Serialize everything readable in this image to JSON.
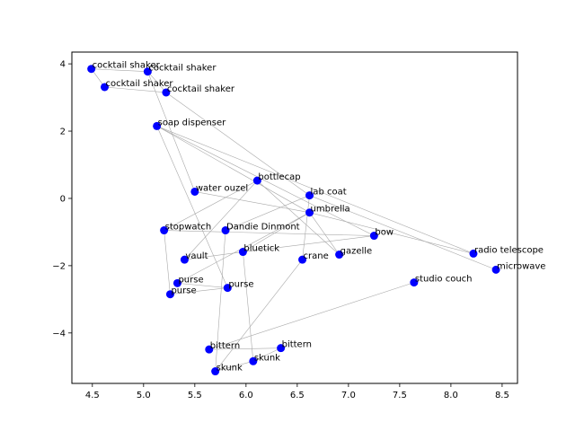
{
  "chart_data": {
    "type": "scatter",
    "title": "",
    "xlabel": "",
    "ylabel": "",
    "xlim": [
      4.3,
      8.65
    ],
    "ylim": [
      -5.5,
      4.35
    ],
    "x_ticks": [
      4.5,
      5.0,
      5.5,
      6.0,
      6.5,
      7.0,
      7.5,
      8.0,
      8.5
    ],
    "y_ticks": [
      -4,
      -2,
      0,
      2,
      4
    ],
    "x_tick_labels": [
      "4.5",
      "5.0",
      "5.5",
      "6.0",
      "6.5",
      "7.0",
      "7.5",
      "8.0",
      "8.5"
    ],
    "y_tick_labels": [
      "−4",
      "−2",
      "0",
      "2",
      "4"
    ],
    "grid": false,
    "marker_color": "#0000ff",
    "edge_color": "#a9a9a9",
    "points": [
      {
        "label": "cocktail shaker",
        "x": 4.49,
        "y": 3.85
      },
      {
        "label": "cocktail shaker",
        "x": 5.04,
        "y": 3.77
      },
      {
        "label": "cocktail shaker",
        "x": 4.62,
        "y": 3.31
      },
      {
        "label": "cocktail shaker",
        "x": 5.22,
        "y": 3.15
      },
      {
        "label": "soap dispenser",
        "x": 5.13,
        "y": 2.15
      },
      {
        "label": "bottlecap",
        "x": 6.11,
        "y": 0.53
      },
      {
        "label": "water ouzel",
        "x": 5.5,
        "y": 0.2
      },
      {
        "label": "lab coat",
        "x": 6.62,
        "y": 0.09
      },
      {
        "label": "umbrella",
        "x": 6.62,
        "y": -0.42
      },
      {
        "label": "stopwatch",
        "x": 5.2,
        "y": -0.95
      },
      {
        "label": "Dandie Dinmont",
        "x": 5.8,
        "y": -0.95
      },
      {
        "label": "bow",
        "x": 7.25,
        "y": -1.11
      },
      {
        "label": "bluetick",
        "x": 5.97,
        "y": -1.59
      },
      {
        "label": "gazelle",
        "x": 6.91,
        "y": -1.67
      },
      {
        "label": "radio telescope",
        "x": 8.22,
        "y": -1.64
      },
      {
        "label": "crane",
        "x": 6.55,
        "y": -1.82
      },
      {
        "label": "vault",
        "x": 5.4,
        "y": -1.82
      },
      {
        "label": "microwave",
        "x": 8.44,
        "y": -2.12
      },
      {
        "label": "purse",
        "x": 5.33,
        "y": -2.52
      },
      {
        "label": "studio couch",
        "x": 7.64,
        "y": -2.5
      },
      {
        "label": "purse",
        "x": 5.82,
        "y": -2.66
      },
      {
        "label": "purse",
        "x": 5.26,
        "y": -2.85
      },
      {
        "label": "bittern",
        "x": 5.64,
        "y": -4.49
      },
      {
        "label": "bittern",
        "x": 6.34,
        "y": -4.45
      },
      {
        "label": "skunk",
        "x": 6.07,
        "y": -4.84
      },
      {
        "label": "skunk",
        "x": 5.7,
        "y": -5.14
      }
    ],
    "edges": [
      [
        0,
        1
      ],
      [
        0,
        2
      ],
      [
        2,
        3
      ],
      [
        1,
        3
      ],
      [
        1,
        6
      ],
      [
        3,
        7
      ],
      [
        4,
        8
      ],
      [
        4,
        14
      ],
      [
        4,
        11
      ],
      [
        4,
        20
      ],
      [
        5,
        9
      ],
      [
        5,
        13
      ],
      [
        5,
        16
      ],
      [
        6,
        8
      ],
      [
        7,
        10
      ],
      [
        7,
        17
      ],
      [
        7,
        15
      ],
      [
        8,
        12
      ],
      [
        8,
        13
      ],
      [
        8,
        14
      ],
      [
        8,
        18
      ],
      [
        9,
        21
      ],
      [
        11,
        12
      ],
      [
        11,
        9
      ],
      [
        12,
        24
      ],
      [
        15,
        25
      ],
      [
        10,
        25
      ],
      [
        18,
        20
      ],
      [
        19,
        22
      ],
      [
        20,
        21
      ],
      [
        22,
        23
      ],
      [
        23,
        24
      ],
      [
        24,
        25
      ],
      [
        12,
        16
      ]
    ]
  }
}
